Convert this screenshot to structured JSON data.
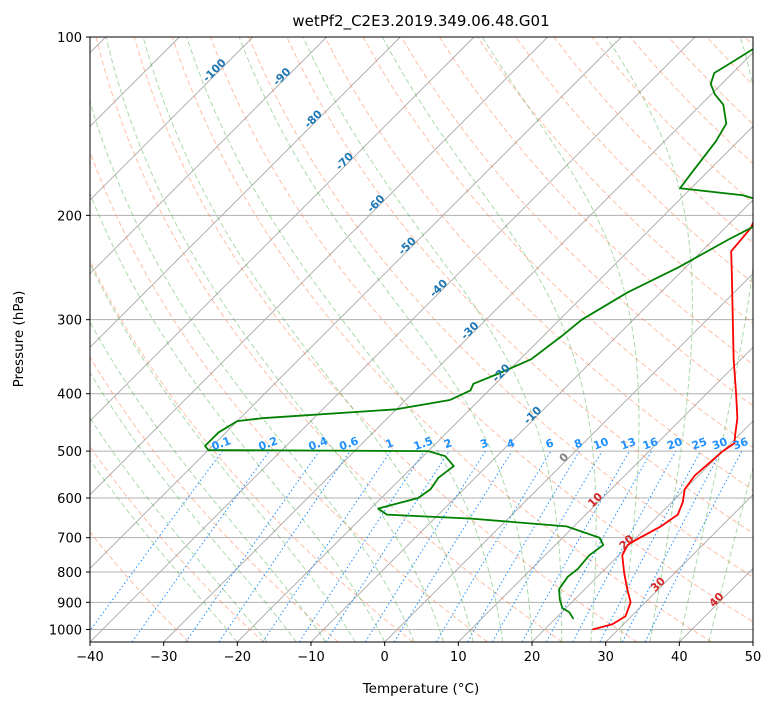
{
  "chart_data": {
    "type": "line",
    "title": "wetPf2_C2E3.2019.349.06.48.G01",
    "xlabel": "Temperature (°C)",
    "ylabel": "Pressure (hPa)",
    "xlim": [
      -40,
      50
    ],
    "ylim": [
      1050,
      100
    ],
    "y_scale": "log",
    "x_ticks": [
      "−40",
      "−30",
      "−20",
      "−10",
      "0",
      "10",
      "20",
      "30",
      "40",
      "50"
    ],
    "y_ticks": [
      {
        "p": 100,
        "label": "100"
      },
      {
        "p": 200,
        "label": "200"
      },
      {
        "p": 300,
        "label": "300"
      },
      {
        "p": 400,
        "label": "400"
      },
      {
        "p": 500,
        "label": "500"
      },
      {
        "p": 600,
        "label": "600"
      },
      {
        "p": 700,
        "label": "700"
      },
      {
        "p": 800,
        "label": "800"
      },
      {
        "p": 900,
        "label": "900"
      },
      {
        "p": 1000,
        "label": "1000"
      }
    ],
    "grid": true,
    "isotherm_labels": [
      "-100",
      "-90",
      "-80",
      "-70",
      "-60",
      "-50",
      "-40",
      "-30",
      "-20",
      "-10",
      "0",
      "10",
      "20",
      "30",
      "40"
    ],
    "mixing_ratio_labels": [
      "0.1",
      "0.2",
      "0.4",
      "0.6",
      "1",
      "1.5",
      "2",
      "3",
      "4",
      "6",
      "8",
      "10",
      "13",
      "16",
      "20",
      "25",
      "30",
      "36"
    ],
    "colors": {
      "temperature": "#ff0000",
      "dewpoint": "#008000",
      "isotherm_label_cold": "#1f77b4",
      "isotherm_label_zero": "#808080",
      "isotherm_label_warm": "#d62728",
      "mixing_ratio": "#1e90ff",
      "dry_adiabat": "#ff7f50",
      "moist_adiabat": "#2ca02c"
    },
    "series": [
      {
        "points": [
          [
            1000,
            26.5
          ],
          [
            980,
            28.5
          ],
          [
            950,
            29.2
          ],
          [
            900,
            28.0
          ],
          [
            850,
            25.5
          ],
          [
            800,
            23.0
          ],
          [
            750,
            20.5
          ],
          [
            720,
            19.8
          ],
          [
            700,
            20.5
          ],
          [
            670,
            21.8
          ],
          [
            640,
            22.5
          ],
          [
            610,
            21.5
          ],
          [
            580,
            20.0
          ],
          [
            550,
            19.5
          ],
          [
            520,
            19.8
          ],
          [
            500,
            20.0
          ],
          [
            485,
            20.5
          ],
          [
            470,
            19.5
          ],
          [
            440,
            17.5
          ],
          [
            400,
            14.0
          ],
          [
            350,
            9.0
          ],
          [
            300,
            3.5
          ],
          [
            250,
            -3.0
          ],
          [
            230,
            -6.0
          ],
          [
            210,
            -6.5
          ],
          [
            190,
            -8.5
          ],
          [
            170,
            -12.0
          ],
          [
            150,
            -16.0
          ],
          [
            130,
            -21.0
          ],
          [
            115,
            -25.0
          ],
          [
            105,
            -27.5
          ],
          [
            100,
            -29.0
          ]
        ]
      },
      {
        "points": [
          [
            960,
            22.5
          ],
          [
            935,
            21.0
          ],
          [
            920,
            19.5
          ],
          [
            890,
            18.0
          ],
          [
            855,
            16.5
          ],
          [
            815,
            16.0
          ],
          [
            790,
            16.3
          ],
          [
            750,
            16.0
          ],
          [
            720,
            16.5
          ],
          [
            700,
            15.0
          ],
          [
            670,
            9.0
          ],
          [
            650,
            -5.0
          ],
          [
            640,
            -17.0
          ],
          [
            625,
            -19.0
          ],
          [
            600,
            -15.0
          ],
          [
            580,
            -14.5
          ],
          [
            555,
            -15.0
          ],
          [
            530,
            -14.5
          ],
          [
            510,
            -17.0
          ],
          [
            500,
            -20.0
          ],
          [
            498,
            -50.0
          ],
          [
            490,
            -51.0
          ],
          [
            465,
            -51.0
          ],
          [
            445,
            -50.0
          ],
          [
            440,
            -47.0
          ],
          [
            425,
            -30.0
          ],
          [
            410,
            -24.0
          ],
          [
            395,
            -22.5
          ],
          [
            385,
            -23.0
          ],
          [
            370,
            -21.0
          ],
          [
            350,
            -18.5
          ],
          [
            320,
            -17.5
          ],
          [
            300,
            -17.0
          ],
          [
            270,
            -14.5
          ],
          [
            245,
            -11.0
          ],
          [
            220,
            -8.0
          ],
          [
            210,
            -6.5
          ],
          [
            200,
            -5.5
          ],
          [
            190,
            -8.0
          ],
          [
            185,
            -12.0
          ],
          [
            180,
            -21.5
          ],
          [
            170,
            -22.0
          ],
          [
            150,
            -23.0
          ],
          [
            140,
            -24.0
          ],
          [
            130,
            -27.0
          ],
          [
            125,
            -29.5
          ],
          [
            120,
            -31.5
          ],
          [
            115,
            -32.5
          ],
          [
            110,
            -31.5
          ],
          [
            100,
            -29.5
          ]
        ]
      }
    ]
  }
}
